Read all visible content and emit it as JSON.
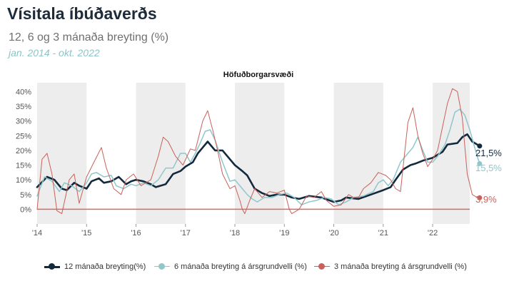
{
  "header": {
    "title": "Vísitala íbúðaverðs",
    "subtitle": "12, 6 og 3 mánaða breyting (%)",
    "period": "jan. 2014 - okt. 2022"
  },
  "colors": {
    "s12": "#132a3e",
    "s6": "#8fc7cb",
    "s3": "#c9615a",
    "zero_line": "#e06666",
    "shade": "#ededed",
    "axis_text": "#555555"
  },
  "legend": [
    {
      "label": "12 mánaða breyting(%)",
      "series": "s12"
    },
    {
      "label": "6 mánaða breyting á ársgrundvelli (%)",
      "series": "s6"
    },
    {
      "label": "3 mánaða breyting á ársgrundvelli (%)",
      "series": "s3"
    }
  ],
  "chart_data": {
    "type": "line",
    "title": "Höfuðborgarsvæði",
    "x_start": "2014-01",
    "x_end": "2022-10",
    "x_tick_labels": [
      "'14",
      "'15",
      "'16",
      "'17",
      "'18",
      "'19",
      "'20",
      "'21",
      "'22"
    ],
    "y_tick_labels": [
      "0%",
      "5%",
      "10%",
      "15%",
      "20%",
      "25%",
      "30%",
      "35%",
      "40%"
    ],
    "ylim": [
      -5,
      43
    ],
    "grid": false,
    "shaded_years": [
      2014,
      2016,
      2018,
      2020,
      2022
    ],
    "end_labels": [
      {
        "series": "s12",
        "text": "21,5%"
      },
      {
        "series": "s6",
        "text": "15,5%"
      },
      {
        "series": "s3",
        "text": "3,9%"
      }
    ],
    "series": [
      {
        "key": "s12",
        "name": "12 mánaða breyting(%)",
        "keypoints": [
          [
            2014.0,
            7.5
          ],
          [
            2014.2,
            11
          ],
          [
            2014.35,
            10
          ],
          [
            2014.5,
            7
          ],
          [
            2014.6,
            6.5
          ],
          [
            2014.75,
            9
          ],
          [
            2014.85,
            8
          ],
          [
            2015.0,
            7
          ],
          [
            2015.1,
            9.5
          ],
          [
            2015.25,
            10.5
          ],
          [
            2015.35,
            9
          ],
          [
            2015.5,
            9.5
          ],
          [
            2015.65,
            11
          ],
          [
            2015.8,
            8.5
          ],
          [
            2015.9,
            9.5
          ],
          [
            2016.0,
            10
          ],
          [
            2016.15,
            9.5
          ],
          [
            2016.3,
            8.5
          ],
          [
            2016.4,
            7.5
          ],
          [
            2016.6,
            8.5
          ],
          [
            2016.75,
            12
          ],
          [
            2016.9,
            13
          ],
          [
            2017.0,
            14.5
          ],
          [
            2017.15,
            16
          ],
          [
            2017.25,
            19
          ],
          [
            2017.35,
            21
          ],
          [
            2017.45,
            23
          ],
          [
            2017.6,
            20
          ],
          [
            2017.75,
            20
          ],
          [
            2017.9,
            17
          ],
          [
            2018.0,
            15
          ],
          [
            2018.15,
            13
          ],
          [
            2018.25,
            11.5
          ],
          [
            2018.4,
            7
          ],
          [
            2018.55,
            5.5
          ],
          [
            2018.7,
            4.5
          ],
          [
            2018.85,
            5
          ],
          [
            2019.0,
            5
          ],
          [
            2019.15,
            4
          ],
          [
            2019.3,
            3.5
          ],
          [
            2019.5,
            4.5
          ],
          [
            2019.75,
            4
          ],
          [
            2020.0,
            2.5
          ],
          [
            2020.15,
            3
          ],
          [
            2020.25,
            4
          ],
          [
            2020.5,
            3.5
          ],
          [
            2020.75,
            5
          ],
          [
            2021.0,
            6.5
          ],
          [
            2021.15,
            7.5
          ],
          [
            2021.25,
            10
          ],
          [
            2021.4,
            13.5
          ],
          [
            2021.55,
            15
          ],
          [
            2021.65,
            15.5
          ],
          [
            2021.8,
            16.5
          ],
          [
            2022.0,
            17.5
          ],
          [
            2022.2,
            19.5
          ],
          [
            2022.3,
            22
          ],
          [
            2022.5,
            22.5
          ],
          [
            2022.6,
            24.5
          ],
          [
            2022.7,
            25.5
          ],
          [
            2022.8,
            23
          ],
          [
            2022.9,
            22
          ],
          [
            2022.95,
            21.5
          ]
        ]
      },
      {
        "key": "s6",
        "name": "6 mánaða breyting á ársgrundvelli (%)",
        "keypoints": [
          [
            2014.0,
            4.5
          ],
          [
            2014.15,
            11
          ],
          [
            2014.3,
            9.5
          ],
          [
            2014.45,
            6
          ],
          [
            2014.55,
            9
          ],
          [
            2014.7,
            8
          ],
          [
            2014.85,
            6
          ],
          [
            2015.0,
            9
          ],
          [
            2015.1,
            12
          ],
          [
            2015.2,
            12.5
          ],
          [
            2015.35,
            11
          ],
          [
            2015.5,
            11.5
          ],
          [
            2015.6,
            8
          ],
          [
            2015.75,
            7
          ],
          [
            2015.9,
            8.5
          ],
          [
            2016.0,
            8
          ],
          [
            2016.15,
            9
          ],
          [
            2016.3,
            8
          ],
          [
            2016.45,
            10
          ],
          [
            2016.6,
            14
          ],
          [
            2016.75,
            14
          ],
          [
            2016.9,
            19
          ],
          [
            2017.0,
            19
          ],
          [
            2017.1,
            16
          ],
          [
            2017.2,
            19
          ],
          [
            2017.3,
            22.5
          ],
          [
            2017.4,
            26.5
          ],
          [
            2017.5,
            27
          ],
          [
            2017.6,
            23.5
          ],
          [
            2017.75,
            16
          ],
          [
            2017.9,
            9.5
          ],
          [
            2018.0,
            10
          ],
          [
            2018.15,
            7
          ],
          [
            2018.25,
            5
          ],
          [
            2018.35,
            3.5
          ],
          [
            2018.45,
            2.5
          ],
          [
            2018.6,
            4
          ],
          [
            2018.75,
            4
          ],
          [
            2018.9,
            5
          ],
          [
            2019.05,
            5.5
          ],
          [
            2019.2,
            4
          ],
          [
            2019.35,
            1.5
          ],
          [
            2019.5,
            2.5
          ],
          [
            2019.65,
            3
          ],
          [
            2019.8,
            4
          ],
          [
            2019.95,
            3.5
          ],
          [
            2020.1,
            1.5
          ],
          [
            2020.25,
            2.5
          ],
          [
            2020.4,
            4
          ],
          [
            2020.6,
            4.5
          ],
          [
            2020.8,
            6
          ],
          [
            2020.9,
            9
          ],
          [
            2021.0,
            10
          ],
          [
            2021.1,
            8
          ],
          [
            2021.2,
            10
          ],
          [
            2021.35,
            16
          ],
          [
            2021.5,
            19
          ],
          [
            2021.6,
            21
          ],
          [
            2021.7,
            24.5
          ],
          [
            2021.8,
            20
          ],
          [
            2021.9,
            16
          ],
          [
            2022.0,
            16
          ],
          [
            2022.1,
            18
          ],
          [
            2022.25,
            22
          ],
          [
            2022.35,
            27
          ],
          [
            2022.45,
            33
          ],
          [
            2022.55,
            34
          ],
          [
            2022.65,
            32
          ],
          [
            2022.75,
            27
          ],
          [
            2022.9,
            18
          ],
          [
            2022.95,
            15.5
          ]
        ]
      },
      {
        "key": "s3",
        "name": "3 mánaða breyting á ársgrundvelli (%)",
        "keypoints": [
          [
            2014.0,
            0
          ],
          [
            2014.1,
            17
          ],
          [
            2014.2,
            19
          ],
          [
            2014.3,
            12
          ],
          [
            2014.4,
            -0.5
          ],
          [
            2014.5,
            -1.5
          ],
          [
            2014.65,
            10
          ],
          [
            2014.75,
            12
          ],
          [
            2014.85,
            2
          ],
          [
            2015.0,
            11
          ],
          [
            2015.15,
            16
          ],
          [
            2015.3,
            21
          ],
          [
            2015.4,
            14
          ],
          [
            2015.55,
            7
          ],
          [
            2015.7,
            5
          ],
          [
            2015.8,
            10
          ],
          [
            2015.95,
            12
          ],
          [
            2016.1,
            8
          ],
          [
            2016.3,
            10
          ],
          [
            2016.45,
            18
          ],
          [
            2016.55,
            24.5
          ],
          [
            2016.65,
            23
          ],
          [
            2016.8,
            18
          ],
          [
            2016.95,
            15
          ],
          [
            2017.1,
            20.5
          ],
          [
            2017.2,
            20
          ],
          [
            2017.35,
            30
          ],
          [
            2017.45,
            33.5
          ],
          [
            2017.55,
            27
          ],
          [
            2017.65,
            20
          ],
          [
            2017.75,
            12
          ],
          [
            2017.9,
            7
          ],
          [
            2018.0,
            8
          ],
          [
            2018.1,
            3
          ],
          [
            2018.15,
            0
          ],
          [
            2018.2,
            -1.5
          ],
          [
            2018.3,
            3
          ],
          [
            2018.4,
            7
          ],
          [
            2018.55,
            4
          ],
          [
            2018.7,
            6
          ],
          [
            2018.85,
            5.5
          ],
          [
            2019.0,
            6.5
          ],
          [
            2019.1,
            0
          ],
          [
            2019.15,
            -1.5
          ],
          [
            2019.3,
            0
          ],
          [
            2019.45,
            4.5
          ],
          [
            2019.6,
            4
          ],
          [
            2019.75,
            6
          ],
          [
            2019.85,
            3
          ],
          [
            2020.0,
            1
          ],
          [
            2020.15,
            1.5
          ],
          [
            2020.3,
            5
          ],
          [
            2020.4,
            4
          ],
          [
            2020.5,
            4
          ],
          [
            2020.6,
            7
          ],
          [
            2020.75,
            9
          ],
          [
            2020.9,
            12.5
          ],
          [
            2021.05,
            11.5
          ],
          [
            2021.15,
            10
          ],
          [
            2021.25,
            7
          ],
          [
            2021.35,
            6
          ],
          [
            2021.5,
            29.5
          ],
          [
            2021.6,
            34.5
          ],
          [
            2021.7,
            25
          ],
          [
            2021.8,
            19
          ],
          [
            2021.9,
            14.5
          ],
          [
            2022.0,
            17
          ],
          [
            2022.1,
            20
          ],
          [
            2022.2,
            28
          ],
          [
            2022.3,
            36
          ],
          [
            2022.4,
            41
          ],
          [
            2022.5,
            40
          ],
          [
            2022.6,
            31
          ],
          [
            2022.7,
            12
          ],
          [
            2022.8,
            5
          ],
          [
            2022.9,
            4
          ],
          [
            2022.95,
            3.9
          ]
        ]
      }
    ]
  }
}
